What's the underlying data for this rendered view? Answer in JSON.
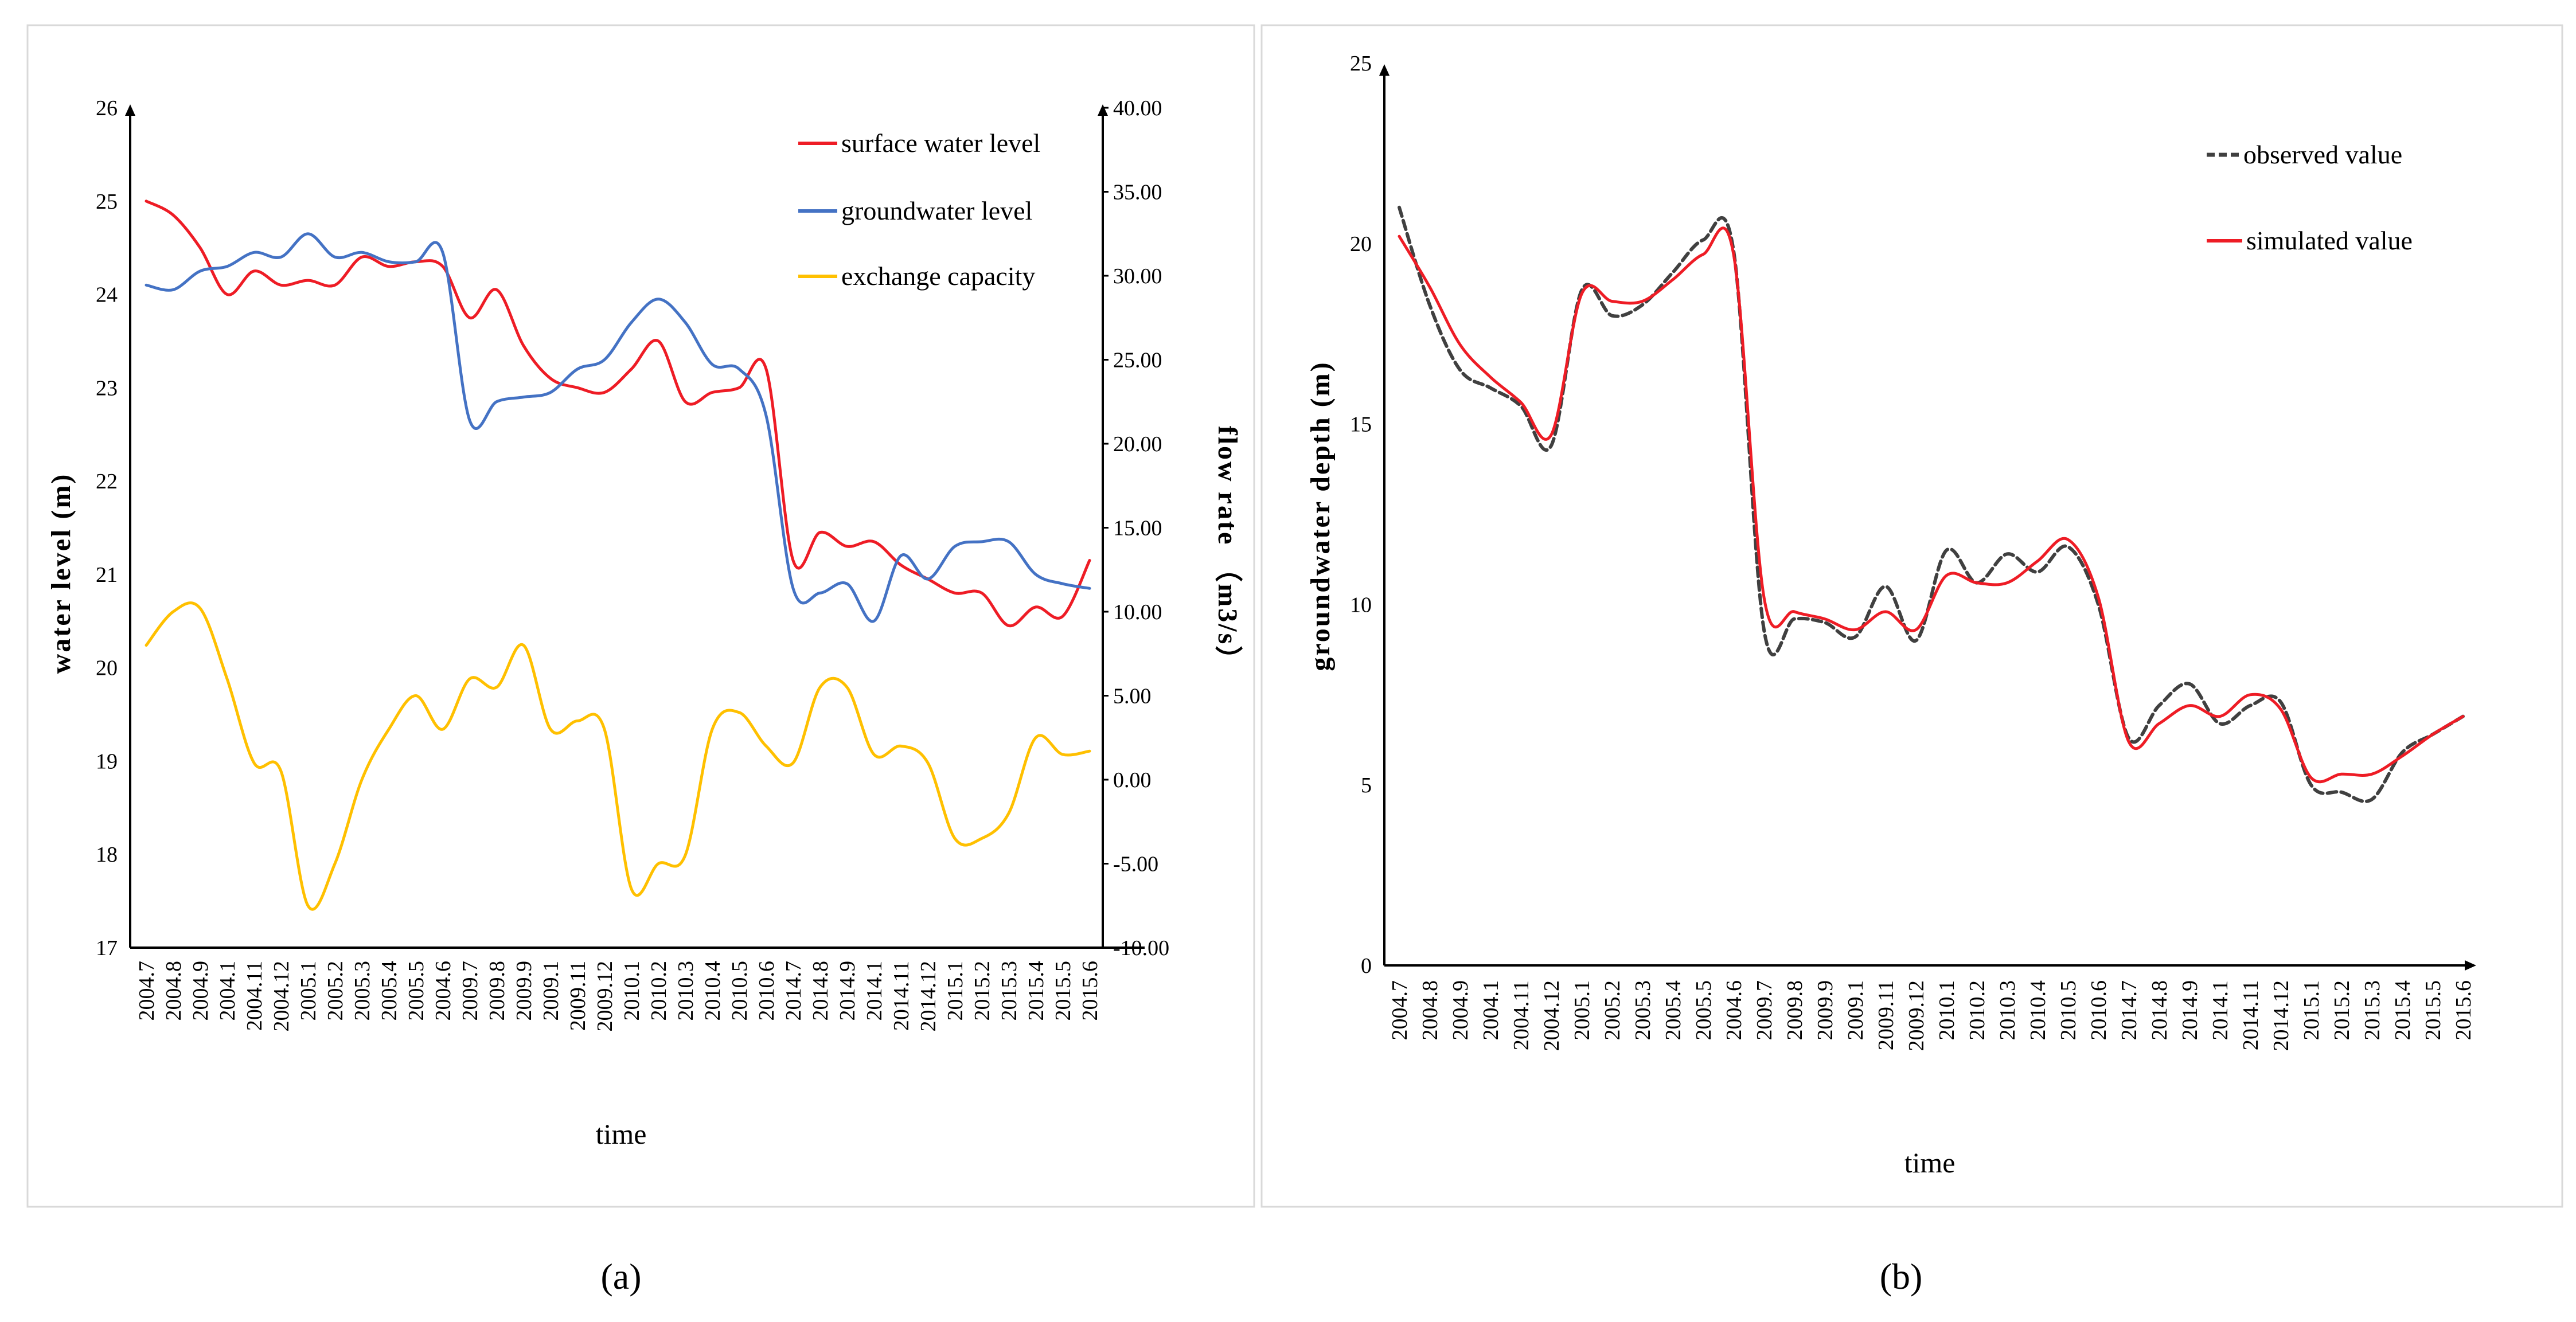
{
  "panel_labels": [
    "(a)",
    "(b)"
  ],
  "colors": {
    "surface": "#ee1c25",
    "groundwater": "#4472c4",
    "exchange": "#ffc000",
    "observed": "#404040",
    "simulated": "#ee1c25"
  },
  "chart_data": [
    {
      "type": "line",
      "title": "",
      "xlabel": "time",
      "ylabel": "water level (m)",
      "y2label": "flow  rate （m3/s）",
      "ylim": [
        17,
        26
      ],
      "y2lim": [
        -10,
        40
      ],
      "yticks": [
        "17",
        "18",
        "19",
        "20",
        "21",
        "22",
        "23",
        "24",
        "25",
        "26"
      ],
      "y2ticks": [
        "-10.00",
        "-5.00",
        "0.00",
        "5.00",
        "10.00",
        "15.00",
        "20.00",
        "25.00",
        "30.00",
        "35.00",
        "40.00"
      ],
      "legend_position": "top-right",
      "categories": [
        "2004.7",
        "2004.8",
        "2004.9",
        "2004.1",
        "2004.11",
        "2004.12",
        "2005.1",
        "2005.2",
        "2005.3",
        "2005.4",
        "2005.5",
        "2004.6",
        "2009.7",
        "2009.8",
        "2009.9",
        "2009.1",
        "2009.11",
        "2009.12",
        "2010.1",
        "2010.2",
        "2010.3",
        "2010.4",
        "2010.5",
        "2010.6",
        "2014.7",
        "2014.8",
        "2014.9",
        "2014.1",
        "2014.11",
        "2014.12",
        "2015.1",
        "2015.2",
        "2015.3",
        "2015.4",
        "2015.5",
        "2015.6"
      ],
      "series": [
        {
          "name": "surface water level",
          "axis": "left",
          "values": [
            25.0,
            24.85,
            24.5,
            24.0,
            24.25,
            24.1,
            24.15,
            24.1,
            24.4,
            24.3,
            24.35,
            24.3,
            23.75,
            24.05,
            23.45,
            23.1,
            23.0,
            22.95,
            23.2,
            23.5,
            22.85,
            22.95,
            23.0,
            23.2,
            21.15,
            21.45,
            21.3,
            21.35,
            21.1,
            20.95,
            20.8,
            20.8,
            20.45,
            20.65,
            20.55,
            21.15
          ]
        },
        {
          "name": "groundwater level",
          "axis": "left",
          "values": [
            24.1,
            24.05,
            24.25,
            24.3,
            24.45,
            24.4,
            24.65,
            24.4,
            24.45,
            24.35,
            24.35,
            24.45,
            22.65,
            22.85,
            22.9,
            22.95,
            23.2,
            23.3,
            23.7,
            23.95,
            23.7,
            23.25,
            23.2,
            22.7,
            20.85,
            20.8,
            20.9,
            20.5,
            21.2,
            20.95,
            21.3,
            21.35,
            21.35,
            21.0,
            20.9,
            20.85
          ]
        },
        {
          "name": "exchange capacity",
          "axis": "right",
          "values": [
            8.0,
            10.0,
            10.2,
            6.0,
            1.0,
            0.5,
            -7.5,
            -5.0,
            0.0,
            3.0,
            5.0,
            3.0,
            6.0,
            5.5,
            8.0,
            3.0,
            3.5,
            3.0,
            -6.5,
            -5.0,
            -4.5,
            3.0,
            4.0,
            2.0,
            1.0,
            5.5,
            5.5,
            1.5,
            2.0,
            1.0,
            -3.5,
            -3.5,
            -2.0,
            2.5,
            1.5,
            1.7
          ]
        }
      ]
    },
    {
      "type": "line",
      "title": "",
      "xlabel": "time",
      "ylabel": "groundwater depth (m)",
      "ylim": [
        0,
        25
      ],
      "yticks": [
        "0",
        "5",
        "10",
        "15",
        "20",
        "25"
      ],
      "legend_position": "top-right",
      "categories": [
        "2004.7",
        "2004.8",
        "2004.9",
        "2004.1",
        "2004.11",
        "2004.12",
        "2005.1",
        "2005.2",
        "2005.3",
        "2005.4",
        "2005.5",
        "2004.6",
        "2009.7",
        "2009.8",
        "2009.9",
        "2009.1",
        "2009.11",
        "2009.12",
        "2010.1",
        "2010.2",
        "2010.3",
        "2010.4",
        "2010.5",
        "2010.6",
        "2014.7",
        "2014.8",
        "2014.9",
        "2014.1",
        "2014.11",
        "2014.12",
        "2015.1",
        "2015.2",
        "2015.3",
        "2015.4",
        "2015.5",
        "2015.6"
      ],
      "series": [
        {
          "name": "observed value",
          "values": [
            21.0,
            18.3,
            16.5,
            16.0,
            15.5,
            14.4,
            18.7,
            18.0,
            18.3,
            19.2,
            20.1,
            19.8,
            9.3,
            9.6,
            9.5,
            9.1,
            10.5,
            9.0,
            11.5,
            10.6,
            11.4,
            10.9,
            11.6,
            10.0,
            6.3,
            7.2,
            7.8,
            6.7,
            7.2,
            7.3,
            5.0,
            4.8,
            4.6,
            5.9,
            6.4,
            6.9
          ]
        },
        {
          "name": "simulated value",
          "values": [
            20.2,
            18.8,
            17.2,
            16.3,
            15.6,
            14.7,
            18.6,
            18.4,
            18.4,
            19.0,
            19.7,
            19.7,
            10.2,
            9.8,
            9.6,
            9.3,
            9.8,
            9.3,
            10.8,
            10.6,
            10.6,
            11.2,
            11.8,
            10.2,
            6.2,
            6.7,
            7.2,
            6.9,
            7.5,
            7.1,
            5.2,
            5.3,
            5.3,
            5.8,
            6.4,
            6.9
          ]
        }
      ]
    }
  ]
}
